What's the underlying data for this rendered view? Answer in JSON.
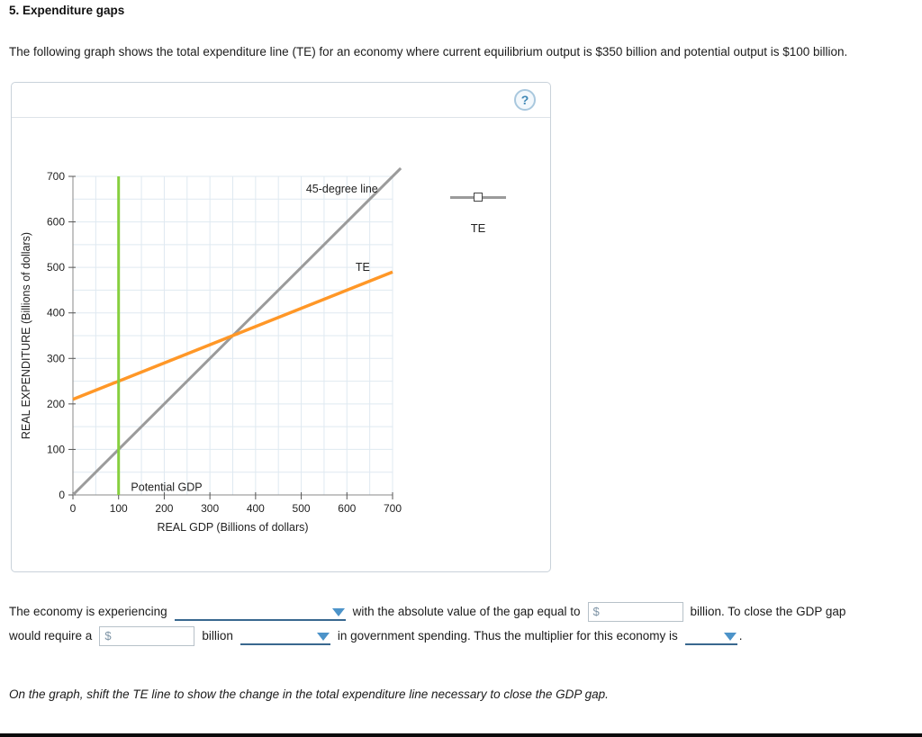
{
  "page": {
    "heading": "5. Expenditure gaps",
    "intro": "The following graph shows the total expenditure line (TE) for an economy where current equilibrium output is $350 billion and potential output is $100 billion.",
    "instruction": "On the graph, shift the TE line to show the change in the total expenditure line necessary to close the GDP gap."
  },
  "panel": {
    "help_label": "?",
    "legend": {
      "label": "TE"
    }
  },
  "chart_data": {
    "type": "line",
    "title": "",
    "xlabel": "REAL GDP (Billions of dollars)",
    "ylabel": "REAL EXPENDITURE (Billions of dollars)",
    "xlim": [
      0,
      700
    ],
    "ylim": [
      0,
      700
    ],
    "xticks": [
      0,
      100,
      200,
      300,
      400,
      500,
      600,
      700
    ],
    "yticks": [
      0,
      100,
      200,
      300,
      400,
      500,
      600,
      700
    ],
    "grid_step": 50,
    "grid_on": true,
    "grid_color": "#dfe9f1",
    "axis_color": "#8a8a8a",
    "series": [
      {
        "id": "line-45-degree",
        "name": "45-degree line",
        "color": "#9b9b9b",
        "width": 3,
        "interactable": false,
        "points": [
          [
            0,
            0
          ],
          [
            718,
            718
          ]
        ]
      },
      {
        "id": "line-te",
        "name": "TE",
        "color": "#ff9727",
        "width": 3.5,
        "interactable": true,
        "points": [
          [
            0,
            210
          ],
          [
            700,
            490
          ]
        ]
      },
      {
        "id": "line-potential-gdp",
        "name": "Potential GDP",
        "color": "#86cf3e",
        "width": 3,
        "interactable": false,
        "points": [
          [
            100,
            0
          ],
          [
            100,
            700
          ]
        ]
      }
    ],
    "annotations": [
      {
        "text": "45-degree line",
        "x": 668,
        "y": 664,
        "anchor": "end"
      },
      {
        "text": "TE",
        "x": 619,
        "y": 492,
        "anchor": "start"
      },
      {
        "text": "Potential GDP",
        "x": 127,
        "y": 9,
        "anchor": "start"
      }
    ],
    "equilibrium_output": 350,
    "potential_output": 100,
    "te_slope": 0.4,
    "te_intercept": 210,
    "legend_position": "right"
  },
  "question": {
    "currency_symbol": "$",
    "line1": {
      "text1": "The economy is experiencing",
      "text2": "with the absolute value of the gap equal to",
      "text3": "billion. To close the GDP gap"
    },
    "line2": {
      "text1": "would require a",
      "text2": "billion",
      "text3": "in government spending. Thus the multiplier for this economy is",
      "text4": "."
    },
    "inputs": {
      "gap_value": "",
      "spending_amount": ""
    }
  }
}
